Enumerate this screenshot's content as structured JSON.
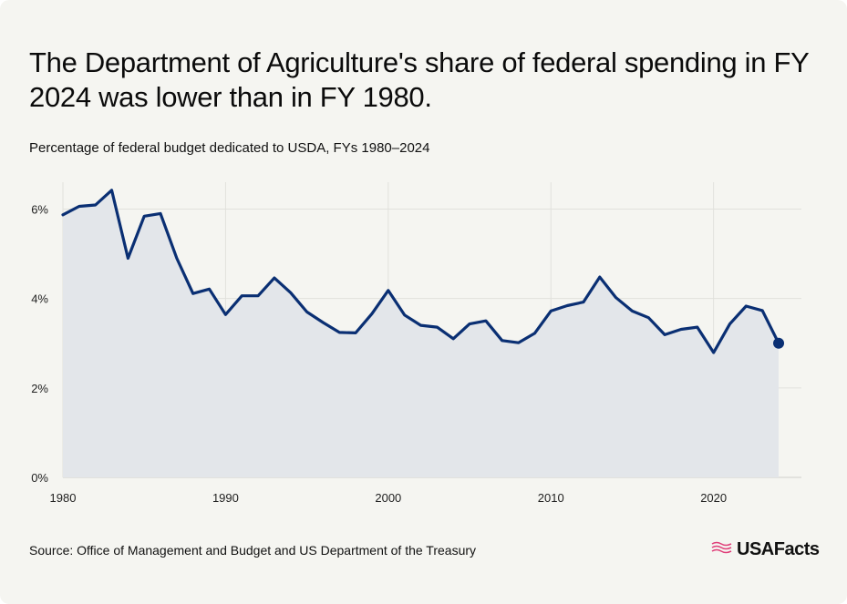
{
  "title": "The Department of Agriculture's share of federal spending in FY 2024 was lower than in FY 1980.",
  "subtitle": "Percentage of federal budget dedicated to USDA, FYs 1980–2024",
  "source": "Source: Office of Management and Budget and US Department of the Treasury",
  "logo": {
    "text": "USAFacts",
    "icon": "flag-stripes-icon"
  },
  "colors": {
    "line": "#0a2f73",
    "area": "#e3e6ea",
    "grid": "#e1e1dc",
    "background": "#f5f5f1"
  },
  "chart_data": {
    "type": "area",
    "x": [
      1980,
      1981,
      1982,
      1983,
      1984,
      1985,
      1986,
      1987,
      1988,
      1989,
      1990,
      1991,
      1992,
      1993,
      1994,
      1995,
      1996,
      1997,
      1998,
      1999,
      2000,
      2001,
      2002,
      2003,
      2004,
      2005,
      2006,
      2007,
      2008,
      2009,
      2010,
      2011,
      2012,
      2013,
      2014,
      2015,
      2016,
      2017,
      2018,
      2019,
      2020,
      2021,
      2022,
      2023,
      2024
    ],
    "values": [
      5.87,
      6.06,
      6.09,
      6.42,
      4.9,
      5.84,
      5.9,
      4.9,
      4.11,
      4.21,
      3.64,
      4.06,
      4.06,
      4.46,
      4.13,
      3.7,
      3.46,
      3.24,
      3.23,
      3.66,
      4.18,
      3.63,
      3.4,
      3.36,
      3.1,
      3.43,
      3.5,
      3.06,
      3.01,
      3.22,
      3.72,
      3.84,
      3.92,
      4.48,
      4.02,
      3.72,
      3.57,
      3.19,
      3.31,
      3.36,
      2.79,
      3.43,
      3.83,
      3.73,
      3.0
    ],
    "x_ticks": [
      "1980",
      "1990",
      "2000",
      "2010",
      "2020"
    ],
    "y_ticks": [
      "0%",
      "2%",
      "4%",
      "6%"
    ],
    "xlim": [
      1980,
      2025.4
    ],
    "ylim": [
      0,
      6.6
    ],
    "xlabel": "",
    "ylabel": "",
    "grid": true,
    "legend": "none",
    "highlight_last_point": true
  }
}
